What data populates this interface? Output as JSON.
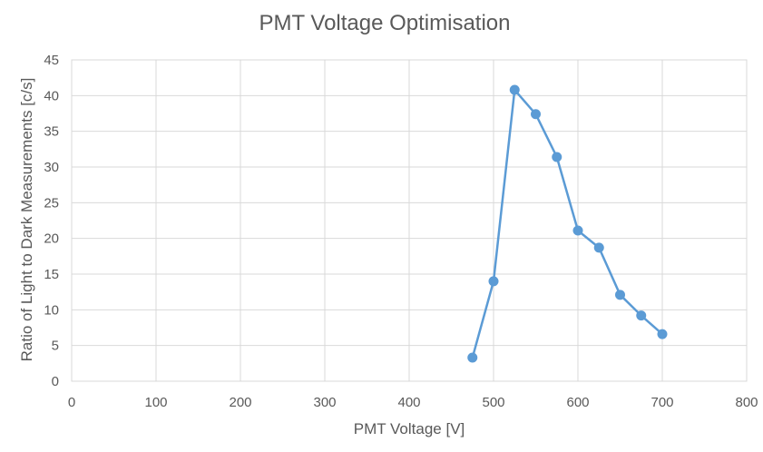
{
  "chart_data": {
    "type": "scatter",
    "title": "PMT Voltage Optimisation",
    "xlabel": "PMT Voltage [V]",
    "ylabel": "Ratio of Light to Dark Measurements [c/s]",
    "xlim": [
      0,
      800
    ],
    "ylim": [
      0,
      45
    ],
    "x_ticks": [
      0,
      100,
      200,
      300,
      400,
      500,
      600,
      700,
      800
    ],
    "y_ticks": [
      0,
      5,
      10,
      15,
      20,
      25,
      30,
      35,
      40,
      45
    ],
    "grid": true,
    "legend": "none",
    "series_color": "#5b9bd5",
    "series": [
      {
        "x": [
          475,
          500,
          525,
          550,
          575,
          600,
          625,
          650,
          675,
          700
        ],
        "y": [
          3.3,
          14.0,
          40.8,
          37.4,
          31.4,
          21.1,
          18.7,
          12.1,
          9.2,
          6.6
        ]
      }
    ]
  }
}
